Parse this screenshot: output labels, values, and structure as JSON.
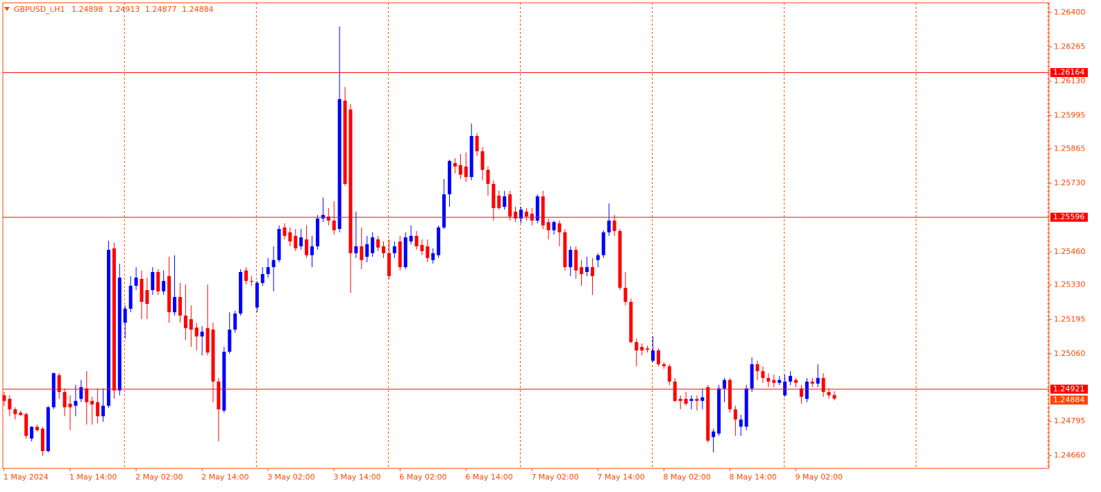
{
  "chart_data": {
    "type": "candlestick",
    "symbol": "GBPUSD_i,H1",
    "categories": [
      "1 May 2024",
      null,
      null,
      null,
      null,
      null,
      null,
      null,
      null,
      null,
      null,
      null,
      "1 May 14:00",
      null,
      null,
      null,
      null,
      null,
      null,
      null,
      null,
      null,
      null,
      null,
      "2 May 02:00",
      null,
      null,
      null,
      null,
      null,
      null,
      null,
      null,
      null,
      null,
      null,
      "2 May 14:00",
      null,
      null,
      null,
      null,
      null,
      null,
      null,
      null,
      null,
      null,
      null,
      "3 May 02:00",
      null,
      null,
      null,
      null,
      null,
      null,
      null,
      null,
      null,
      null,
      null,
      "3 May 14:00",
      null,
      null,
      null,
      null,
      null,
      null,
      null,
      null,
      null,
      null,
      null,
      "6 May 02:00",
      null,
      null,
      null,
      null,
      null,
      null,
      null,
      null,
      null,
      null,
      null,
      "6 May 14:00",
      null,
      null,
      null,
      null,
      null,
      null,
      null,
      null,
      null,
      null,
      null,
      "7 May 02:00",
      null,
      null,
      null,
      null,
      null,
      null,
      null,
      null,
      null,
      null,
      null,
      "7 May 14:00",
      null,
      null,
      null,
      null,
      null,
      null,
      null,
      null,
      null,
      null,
      null,
      "8 May 02:00",
      null,
      null,
      null,
      null,
      null,
      null,
      null,
      null,
      null,
      null,
      null,
      "8 May 14:00",
      null,
      null,
      null,
      null,
      null,
      null,
      null,
      null,
      null,
      null,
      null,
      "9 May 02:00",
      null,
      null,
      null,
      null,
      null,
      null,
      null
    ],
    "open": [
      1.24897,
      1.24883,
      1.24842,
      1.24829,
      1.24823,
      1.24727,
      1.24773,
      1.24766,
      1.24678,
      1.2485,
      1.24976,
      1.2491,
      1.24864,
      1.24856,
      1.24883,
      1.24924,
      1.24875,
      1.2487,
      1.24815,
      1.24856,
      1.25474,
      1.24916,
      1.25182,
      1.25237,
      1.25327,
      1.25354,
      1.2531,
      1.2531,
      1.25381,
      1.25305,
      1.25365,
      1.25223,
      1.25283,
      1.2521,
      1.25196,
      1.25163,
      1.25128,
      1.25161,
      1.25155,
      1.24951,
      1.24837,
      1.25068,
      1.25155,
      1.25218,
      1.25387,
      1.25346,
      1.25242,
      1.25338,
      1.25373,
      1.254,
      1.25428,
      1.25556,
      1.25537,
      1.25523,
      1.25482,
      1.25509,
      1.25447,
      1.25482,
      1.25591,
      1.25599,
      1.25583,
      1.2555,
      1.26054,
      1.26019,
      1.25455,
      1.25482,
      1.25441,
      1.25455,
      1.25509,
      1.25482,
      1.25455,
      1.25455,
      1.25501,
      1.254,
      1.25501,
      1.25523,
      1.25487,
      1.25482,
      1.25428,
      1.25447,
      1.25556,
      1.25686,
      1.25809,
      1.25801,
      1.25795,
      1.25754,
      1.25915,
      1.25855,
      1.25782,
      1.25727,
      1.25681,
      1.25637,
      1.25686,
      1.25618,
      1.25591,
      1.25618,
      1.2561,
      1.25583,
      1.25678,
      1.25577,
      1.25545,
      1.25572,
      1.25537,
      1.254,
      1.25468,
      1.254,
      1.25381,
      1.254,
      1.25428,
      1.25447,
      1.25537,
      1.25583,
      1.25542,
      1.25319,
      1.25264,
      1.25106,
      1.25087,
      1.25081,
      1.25033,
      1.25073,
      1.25019,
      1.25011,
      1.24951,
      1.24883,
      1.24883,
      1.24875,
      1.24883,
      1.24875,
      1.24929,
      1.24733,
      1.24747,
      1.24924,
      1.24957,
      1.24842,
      1.24774,
      1.24774,
      1.24924,
      1.25019,
      1.24992,
      1.24965,
      1.24957,
      1.24946,
      1.24897,
      1.24951,
      1.24957,
      1.24924,
      1.24883,
      1.24951,
      1.24943,
      1.24965,
      1.2491,
      1.24898
    ],
    "high": [
      1.2491,
      1.24897,
      1.2485,
      1.24837,
      1.24829,
      1.24776,
      1.24782,
      1.24773,
      1.24856,
      1.24986,
      1.24984,
      1.24924,
      1.24897,
      1.24938,
      1.24957,
      1.24992,
      1.24891,
      1.24924,
      1.24924,
      1.25504,
      1.25496,
      1.25414,
      1.2525,
      1.25365,
      1.254,
      1.25387,
      1.25359,
      1.254,
      1.25392,
      1.25387,
      1.25441,
      1.25447,
      1.25338,
      1.25332,
      1.2525,
      1.25182,
      1.25169,
      1.25332,
      1.25182,
      1.24965,
      1.25087,
      1.25223,
      1.25229,
      1.25392,
      1.254,
      1.25365,
      1.25346,
      1.254,
      1.25436,
      1.25482,
      1.25564,
      1.25572,
      1.25556,
      1.2555,
      1.2555,
      1.25564,
      1.25523,
      1.25605,
      1.25673,
      1.25632,
      1.25659,
      1.26345,
      1.26108,
      1.2604,
      1.25618,
      1.25556,
      1.25523,
      1.25537,
      1.25523,
      1.25501,
      1.25509,
      1.25501,
      1.25523,
      1.25537,
      1.25564,
      1.25542,
      1.25509,
      1.25509,
      1.25474,
      1.25564,
      1.25746,
      1.25822,
      1.25828,
      1.25844,
      1.2585,
      1.25964,
      1.25926,
      1.25872,
      1.25795,
      1.25741,
      1.257,
      1.257,
      1.257,
      1.25637,
      1.25637,
      1.25632,
      1.25632,
      1.25686,
      1.257,
      1.25591,
      1.25583,
      1.25583,
      1.2555,
      1.25482,
      1.25482,
      1.25428,
      1.25441,
      1.25436,
      1.25455,
      1.25545,
      1.25651,
      1.25605,
      1.2555,
      1.25381,
      1.25278,
      1.2512,
      1.25101,
      1.25092,
      1.25128,
      1.25081,
      1.25027,
      1.25019,
      1.24965,
      1.24897,
      1.2491,
      1.24897,
      1.24897,
      1.24924,
      1.24938,
      1.24766,
      1.24938,
      1.24965,
      1.24965,
      1.24856,
      1.24821,
      1.24938,
      1.25046,
      1.25033,
      1.25011,
      1.24984,
      1.24978,
      1.24973,
      1.24978,
      1.24992,
      1.24965,
      1.24938,
      1.24965,
      1.24965,
      1.25019,
      1.24984,
      1.24924,
      1.24913
    ],
    "low": [
      1.24856,
      1.24815,
      1.24802,
      1.24815,
      1.24727,
      1.24716,
      1.24755,
      1.24659,
      1.24673,
      1.24842,
      1.24883,
      1.24815,
      1.2476,
      1.24815,
      1.2487,
      1.24782,
      1.24782,
      1.24788,
      1.24793,
      1.24848,
      1.24883,
      1.24897,
      1.2512,
      1.25223,
      1.2531,
      1.25196,
      1.25196,
      1.25291,
      1.25291,
      1.25291,
      1.25182,
      1.2521,
      1.25182,
      1.25114,
      1.25087,
      1.25073,
      1.25054,
      1.25054,
      1.2487,
      1.24716,
      1.24829,
      1.2506,
      1.25142,
      1.2521,
      1.25332,
      1.25327,
      1.25223,
      1.25327,
      1.25359,
      1.25305,
      1.25419,
      1.25509,
      1.25482,
      1.25463,
      1.25468,
      1.25436,
      1.254,
      1.25468,
      1.25577,
      1.25564,
      1.25528,
      1.25537,
      1.25719,
      1.25299,
      1.25436,
      1.25392,
      1.25419,
      1.25441,
      1.25463,
      1.25436,
      1.25354,
      1.25436,
      1.25387,
      1.25392,
      1.2549,
      1.25468,
      1.25447,
      1.25419,
      1.25414,
      1.25436,
      1.2555,
      1.25637,
      1.25768,
      1.25746,
      1.25735,
      1.25741,
      1.25836,
      1.25741,
      1.25681,
      1.25583,
      1.25626,
      1.25626,
      1.25583,
      1.25577,
      1.25572,
      1.25583,
      1.25564,
      1.25572,
      1.2555,
      1.25509,
      1.25528,
      1.25482,
      1.25387,
      1.25365,
      1.25354,
      1.25327,
      1.25365,
      1.25291,
      1.254,
      1.25436,
      1.25523,
      1.25523,
      1.2531,
      1.2525,
      1.25101,
      1.25011,
      1.25054,
      1.25065,
      1.25027,
      1.25011,
      1.25,
      1.24937,
      1.2487,
      1.24842,
      1.24856,
      1.24842,
      1.24837,
      1.24842,
      1.24711,
      1.24673,
      1.24738,
      1.2487,
      1.24829,
      1.24738,
      1.24738,
      1.2476,
      1.2491,
      1.24957,
      1.24946,
      1.24929,
      1.24929,
      1.24937,
      1.24891,
      1.24937,
      1.24929,
      1.24864,
      1.2487,
      1.24929,
      1.24929,
      1.24891,
      1.24883,
      1.24877
    ],
    "close": [
      1.24875,
      1.24842,
      1.24823,
      1.2482,
      1.24738,
      1.24773,
      1.2476,
      1.24678,
      1.2485,
      1.24984,
      1.2491,
      1.2485,
      1.2485,
      1.24875,
      1.24929,
      1.2487,
      1.24861,
      1.24815,
      1.24856,
      1.25468,
      1.24916,
      1.25359,
      1.25237,
      1.25327,
      1.25359,
      1.25264,
      1.25256,
      1.25381,
      1.25305,
      1.25346,
      1.25223,
      1.25283,
      1.2521,
      1.25161,
      1.25155,
      1.25128,
      1.25147,
      1.25065,
      1.24951,
      1.24842,
      1.25068,
      1.25155,
      1.25218,
      1.25381,
      1.25346,
      1.25343,
      1.25338,
      1.25373,
      1.254,
      1.25428,
      1.2555,
      1.25523,
      1.25501,
      1.25474,
      1.25517,
      1.25447,
      1.25482,
      1.25591,
      1.25605,
      1.25583,
      1.25545,
      1.2606,
      1.25727,
      1.25455,
      1.25482,
      1.25428,
      1.2549,
      1.25517,
      1.25477,
      1.25455,
      1.25365,
      1.25482,
      1.254,
      1.25517,
      1.25523,
      1.25482,
      1.25463,
      1.25436,
      1.25455,
      1.25556,
      1.25686,
      1.25817,
      1.25795,
      1.25763,
      1.25754,
      1.25915,
      1.25855,
      1.25782,
      1.25727,
      1.25632,
      1.25632,
      1.25678,
      1.25599,
      1.25591,
      1.25626,
      1.25599,
      1.25583,
      1.25678,
      1.25564,
      1.25545,
      1.25577,
      1.25537,
      1.254,
      1.25468,
      1.25387,
      1.25373,
      1.254,
      1.25365,
      1.25447,
      1.25537,
      1.25583,
      1.25542,
      1.25319,
      1.25264,
      1.25106,
      1.25073,
      1.25073,
      1.25076,
      1.25073,
      1.25019,
      1.25011,
      1.24951,
      1.24875,
      1.24875,
      1.24864,
      1.24883,
      1.24875,
      1.24889,
      1.24719,
      1.24755,
      1.24924,
      1.24957,
      1.24842,
      1.24802,
      1.24802,
      1.24924,
      1.25019,
      1.24992,
      1.24965,
      1.24951,
      1.24946,
      1.24957,
      1.24951,
      1.24973,
      1.24946,
      1.24891,
      1.24951,
      1.24943,
      1.24965,
      1.2491,
      1.24897,
      1.24884
    ],
    "up_color": "#0000ff",
    "down_color": "#ff0000",
    "axis_color": "#ff4500",
    "ylim": [
      1.2461,
      1.26438
    ],
    "yticks": [
      {
        "value": 1.264,
        "label": "1.26400"
      },
      1.26265,
      {
        "value": 1.2613,
        "label": "1.26130"
      },
      1.25995,
      1.25865,
      {
        "value": 1.2573,
        "label": "1.25730"
      },
      {
        "value": 1.2546,
        "label": "1.25460"
      },
      {
        "value": 1.2533,
        "label": "1.25330"
      },
      1.25195,
      {
        "value": 1.2506,
        "label": "1.25060"
      },
      1.24795,
      {
        "value": 1.2466,
        "label": "1.24660"
      }
    ],
    "hlines": [
      1.26164,
      1.25596,
      1.24921
    ],
    "hline_color": "#ff0000",
    "last_price": 1.24884
  }
}
